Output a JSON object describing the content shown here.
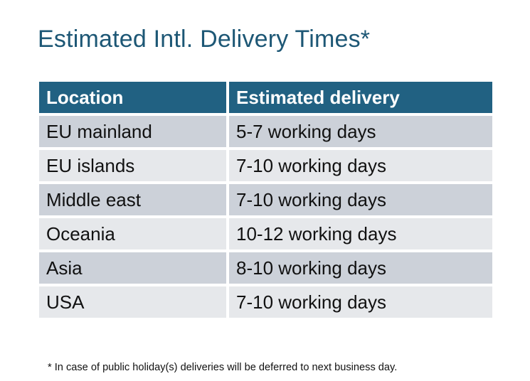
{
  "title": "Estimated Intl. Delivery Times*",
  "table": {
    "headers": [
      "Location",
      "Estimated delivery"
    ],
    "rows": [
      [
        "EU mainland",
        "5-7 working days"
      ],
      [
        "EU islands",
        "7-10 working days"
      ],
      [
        "Middle east",
        "7-10 working days"
      ],
      [
        "Oceania",
        "10-12 working days"
      ],
      [
        "Asia",
        "8-10 working days"
      ],
      [
        "USA",
        "7-10 working days"
      ]
    ]
  },
  "footnote": "* In case of public holiday(s) deliveries will be deferred to next business day.",
  "colors": {
    "header_bg": "#216182",
    "title": "#1d5775",
    "row_dark": "#ccd1d9",
    "row_light": "#e6e8eb"
  }
}
